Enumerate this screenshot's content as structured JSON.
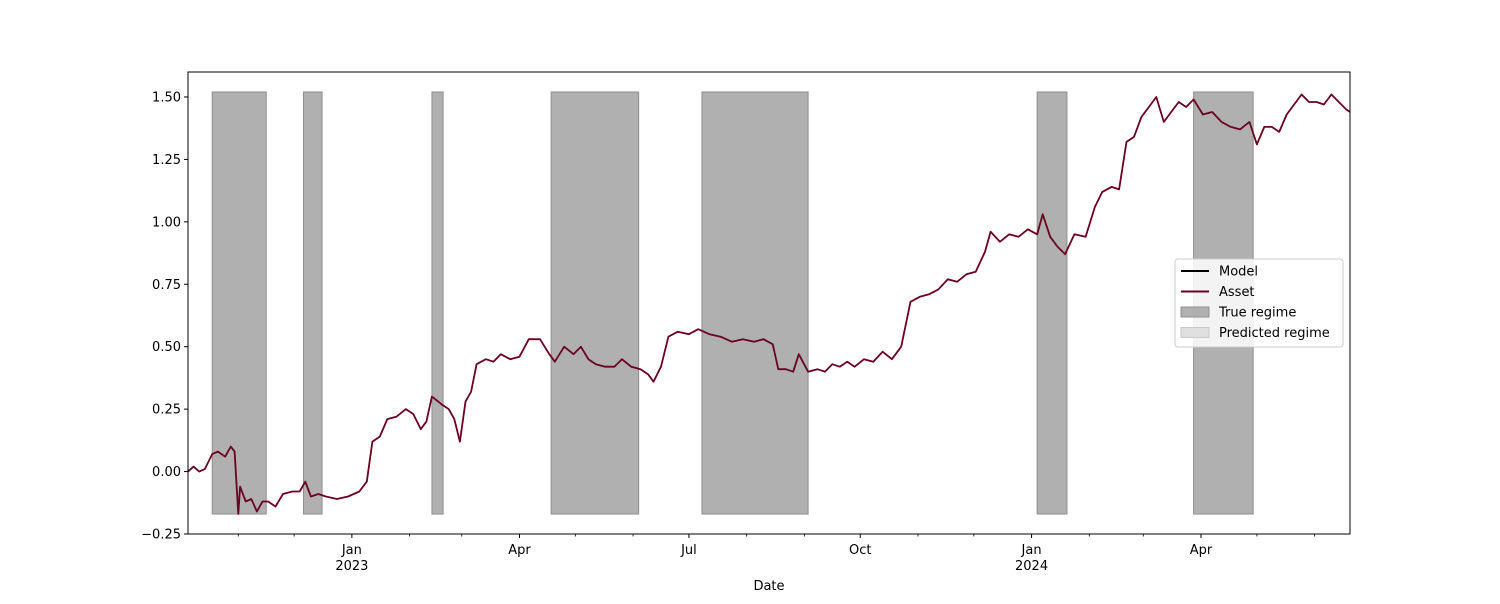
{
  "chart_data": {
    "type": "line",
    "title": "",
    "xlabel": "Date",
    "ylabel": "",
    "xlim": [
      "2022-10-05",
      "2024-06-20"
    ],
    "ylim": [
      -0.25,
      1.6
    ],
    "grid": false,
    "legend_position": "right",
    "y_ticks": [
      {
        "value": -0.25,
        "label": "−0.25"
      },
      {
        "value": 0.0,
        "label": "0.00"
      },
      {
        "value": 0.25,
        "label": "0.25"
      },
      {
        "value": 0.5,
        "label": "0.50"
      },
      {
        "value": 0.75,
        "label": "0.75"
      },
      {
        "value": 1.0,
        "label": "1.00"
      },
      {
        "value": 1.25,
        "label": "1.25"
      },
      {
        "value": 1.5,
        "label": "1.50"
      }
    ],
    "x_major_ticks": [
      {
        "date": "2023-01-01",
        "label": "Jan",
        "sublabel": "2023"
      },
      {
        "date": "2023-04-01",
        "label": "Apr",
        "sublabel": ""
      },
      {
        "date": "2023-07-01",
        "label": "Jul",
        "sublabel": ""
      },
      {
        "date": "2023-10-01",
        "label": "Oct",
        "sublabel": ""
      },
      {
        "date": "2024-01-01",
        "label": "Jan",
        "sublabel": "2024"
      },
      {
        "date": "2024-04-01",
        "label": "Apr",
        "sublabel": ""
      }
    ],
    "x_minor_ticks": [
      "2022-11-01",
      "2022-12-01",
      "2023-02-01",
      "2023-03-01",
      "2023-05-01",
      "2023-06-01",
      "2023-08-01",
      "2023-09-01",
      "2023-11-01",
      "2023-12-01",
      "2024-02-01",
      "2024-03-01",
      "2024-05-01",
      "2024-06-01"
    ],
    "regime_band": {
      "y_low": -0.17,
      "y_high": 1.52
    },
    "true_regime_periods": [
      [
        "2022-10-18",
        "2022-11-16"
      ],
      [
        "2022-12-06",
        "2022-12-16"
      ],
      [
        "2023-02-13",
        "2023-02-19"
      ],
      [
        "2023-04-18",
        "2023-06-04"
      ],
      [
        "2023-07-08",
        "2023-09-03"
      ],
      [
        "2024-01-04",
        "2024-01-20"
      ],
      [
        "2024-03-28",
        "2024-04-29"
      ]
    ],
    "predicted_regime_periods": [],
    "series": [
      {
        "name": "Model",
        "color": "#000000",
        "points": []
      },
      {
        "name": "Asset",
        "color": "#6b0020",
        "points": [
          [
            "2022-10-05",
            0.0
          ],
          [
            "2022-10-08",
            0.02
          ],
          [
            "2022-10-11",
            0.0
          ],
          [
            "2022-10-14",
            0.01
          ],
          [
            "2022-10-18",
            0.07
          ],
          [
            "2022-10-21",
            0.08
          ],
          [
            "2022-10-25",
            0.06
          ],
          [
            "2022-10-28",
            0.1
          ],
          [
            "2022-10-30",
            0.08
          ],
          [
            "2022-11-01",
            -0.17
          ],
          [
            "2022-11-02",
            -0.06
          ],
          [
            "2022-11-05",
            -0.12
          ],
          [
            "2022-11-08",
            -0.11
          ],
          [
            "2022-11-11",
            -0.16
          ],
          [
            "2022-11-14",
            -0.12
          ],
          [
            "2022-11-17",
            -0.12
          ],
          [
            "2022-11-21",
            -0.14
          ],
          [
            "2022-11-25",
            -0.09
          ],
          [
            "2022-11-30",
            -0.08
          ],
          [
            "2022-12-04",
            -0.08
          ],
          [
            "2022-12-07",
            -0.04
          ],
          [
            "2022-12-10",
            -0.1
          ],
          [
            "2022-12-14",
            -0.09
          ],
          [
            "2022-12-18",
            -0.1
          ],
          [
            "2022-12-24",
            -0.11
          ],
          [
            "2022-12-30",
            -0.1
          ],
          [
            "2023-01-05",
            -0.08
          ],
          [
            "2023-01-09",
            -0.04
          ],
          [
            "2023-01-12",
            0.12
          ],
          [
            "2023-01-16",
            0.14
          ],
          [
            "2023-01-20",
            0.21
          ],
          [
            "2023-01-25",
            0.22
          ],
          [
            "2023-01-30",
            0.25
          ],
          [
            "2023-02-03",
            0.23
          ],
          [
            "2023-02-07",
            0.17
          ],
          [
            "2023-02-10",
            0.2
          ],
          [
            "2023-02-13",
            0.3
          ],
          [
            "2023-02-18",
            0.27
          ],
          [
            "2023-02-22",
            0.25
          ],
          [
            "2023-02-25",
            0.21
          ],
          [
            "2023-02-28",
            0.12
          ],
          [
            "2023-03-03",
            0.28
          ],
          [
            "2023-03-06",
            0.32
          ],
          [
            "2023-03-09",
            0.43
          ],
          [
            "2023-03-14",
            0.45
          ],
          [
            "2023-03-18",
            0.44
          ],
          [
            "2023-03-22",
            0.47
          ],
          [
            "2023-03-27",
            0.45
          ],
          [
            "2023-04-01",
            0.46
          ],
          [
            "2023-04-06",
            0.53
          ],
          [
            "2023-04-12",
            0.53
          ],
          [
            "2023-04-17",
            0.47
          ],
          [
            "2023-04-20",
            0.44
          ],
          [
            "2023-04-25",
            0.5
          ],
          [
            "2023-04-30",
            0.47
          ],
          [
            "2023-05-04",
            0.5
          ],
          [
            "2023-05-08",
            0.45
          ],
          [
            "2023-05-12",
            0.43
          ],
          [
            "2023-05-17",
            0.42
          ],
          [
            "2023-05-22",
            0.42
          ],
          [
            "2023-05-26",
            0.45
          ],
          [
            "2023-05-31",
            0.42
          ],
          [
            "2023-06-05",
            0.41
          ],
          [
            "2023-06-09",
            0.39
          ],
          [
            "2023-06-12",
            0.36
          ],
          [
            "2023-06-16",
            0.42
          ],
          [
            "2023-06-20",
            0.54
          ],
          [
            "2023-06-25",
            0.56
          ],
          [
            "2023-07-01",
            0.55
          ],
          [
            "2023-07-06",
            0.57
          ],
          [
            "2023-07-12",
            0.55
          ],
          [
            "2023-07-18",
            0.54
          ],
          [
            "2023-07-24",
            0.52
          ],
          [
            "2023-07-30",
            0.53
          ],
          [
            "2023-08-05",
            0.52
          ],
          [
            "2023-08-10",
            0.53
          ],
          [
            "2023-08-15",
            0.51
          ],
          [
            "2023-08-18",
            0.41
          ],
          [
            "2023-08-22",
            0.41
          ],
          [
            "2023-08-26",
            0.4
          ],
          [
            "2023-08-29",
            0.47
          ],
          [
            "2023-09-03",
            0.4
          ],
          [
            "2023-09-08",
            0.41
          ],
          [
            "2023-09-12",
            0.4
          ],
          [
            "2023-09-16",
            0.43
          ],
          [
            "2023-09-20",
            0.42
          ],
          [
            "2023-09-24",
            0.44
          ],
          [
            "2023-09-28",
            0.42
          ],
          [
            "2023-10-03",
            0.45
          ],
          [
            "2023-10-08",
            0.44
          ],
          [
            "2023-10-13",
            0.48
          ],
          [
            "2023-10-18",
            0.45
          ],
          [
            "2023-10-23",
            0.5
          ],
          [
            "2023-10-28",
            0.68
          ],
          [
            "2023-11-02",
            0.7
          ],
          [
            "2023-11-07",
            0.71
          ],
          [
            "2023-11-12",
            0.73
          ],
          [
            "2023-11-17",
            0.77
          ],
          [
            "2023-11-22",
            0.76
          ],
          [
            "2023-11-27",
            0.79
          ],
          [
            "2023-12-02",
            0.8
          ],
          [
            "2023-12-07",
            0.88
          ],
          [
            "2023-12-10",
            0.96
          ],
          [
            "2023-12-15",
            0.92
          ],
          [
            "2023-12-20",
            0.95
          ],
          [
            "2023-12-25",
            0.94
          ],
          [
            "2023-12-30",
            0.97
          ],
          [
            "2024-01-04",
            0.95
          ],
          [
            "2024-01-07",
            1.03
          ],
          [
            "2024-01-11",
            0.94
          ],
          [
            "2024-01-15",
            0.9
          ],
          [
            "2024-01-19",
            0.87
          ],
          [
            "2024-01-24",
            0.95
          ],
          [
            "2024-01-30",
            0.94
          ],
          [
            "2024-02-04",
            1.06
          ],
          [
            "2024-02-08",
            1.12
          ],
          [
            "2024-02-13",
            1.14
          ],
          [
            "2024-02-17",
            1.13
          ],
          [
            "2024-02-21",
            1.32
          ],
          [
            "2024-02-25",
            1.34
          ],
          [
            "2024-02-29",
            1.42
          ],
          [
            "2024-03-04",
            1.46
          ],
          [
            "2024-03-08",
            1.5
          ],
          [
            "2024-03-12",
            1.4
          ],
          [
            "2024-03-16",
            1.44
          ],
          [
            "2024-03-20",
            1.48
          ],
          [
            "2024-03-24",
            1.46
          ],
          [
            "2024-03-28",
            1.49
          ],
          [
            "2024-04-02",
            1.43
          ],
          [
            "2024-04-07",
            1.44
          ],
          [
            "2024-04-12",
            1.4
          ],
          [
            "2024-04-17",
            1.38
          ],
          [
            "2024-04-22",
            1.37
          ],
          [
            "2024-04-27",
            1.4
          ],
          [
            "2024-05-01",
            1.31
          ],
          [
            "2024-05-05",
            1.38
          ],
          [
            "2024-05-09",
            1.38
          ],
          [
            "2024-05-13",
            1.36
          ],
          [
            "2024-05-17",
            1.43
          ],
          [
            "2024-05-21",
            1.47
          ],
          [
            "2024-05-25",
            1.51
          ],
          [
            "2024-05-29",
            1.48
          ],
          [
            "2024-06-02",
            1.48
          ],
          [
            "2024-06-06",
            1.47
          ],
          [
            "2024-06-10",
            1.51
          ],
          [
            "2024-06-14",
            1.48
          ],
          [
            "2024-06-18",
            1.45
          ],
          [
            "2024-06-20",
            1.44
          ]
        ]
      }
    ],
    "legend": {
      "entries": [
        {
          "label": "Model",
          "kind": "line",
          "color": "#000000"
        },
        {
          "label": "Asset",
          "kind": "line",
          "color": "#6b0020"
        },
        {
          "label": "True regime",
          "kind": "patch",
          "color": "#b0b0b0"
        },
        {
          "label": "Predicted regime",
          "kind": "patch",
          "color": "#e0e0e0"
        }
      ]
    }
  }
}
